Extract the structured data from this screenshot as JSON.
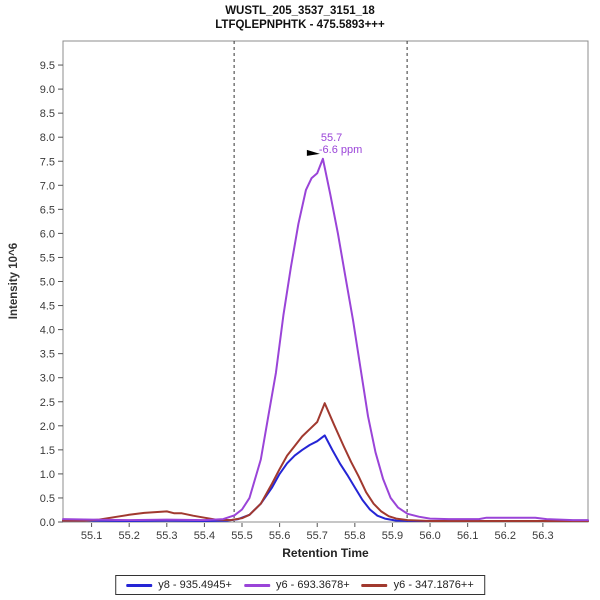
{
  "chart_data": {
    "type": "line",
    "title_line1": "WUSTL_205_3537_3151_18",
    "title_line2": "LTFQLEPNPHTK - 475.5893+++",
    "xlabel": "Retention Time",
    "ylabel": "Intensity 10^6",
    "xlim": [
      55.024,
      56.42
    ],
    "ylim": [
      0,
      10
    ],
    "grid": false,
    "legend_position": "bottom-center",
    "x_tick_labels": [
      "55.1",
      "55.2",
      "55.3",
      "55.4",
      "55.5",
      "55.6",
      "55.7",
      "55.8",
      "55.9",
      "56.0",
      "56.1",
      "56.2",
      "56.3"
    ],
    "y_tick_labels": [
      "0.0",
      "0.5",
      "1.0",
      "1.5",
      "2.0",
      "2.5",
      "3.0",
      "3.5",
      "4.0",
      "4.5",
      "5.0",
      "5.5",
      "6.0",
      "6.5",
      "7.0",
      "7.5",
      "8.0",
      "8.5",
      "9.0",
      "9.5"
    ],
    "peak_boundaries": [
      55.479,
      55.939
    ],
    "annotation": {
      "rt_label": "55.7",
      "ppm_label": "-6.6 ppm",
      "x": 55.715,
      "y": 7.55,
      "color": "#9a44d8"
    },
    "draw_order": [
      0,
      2,
      1
    ],
    "series": [
      {
        "id": "y8-935",
        "label": "y8 - 935.4945+",
        "color": "#2525d5",
        "points": [
          [
            55.024,
            0.03
          ],
          [
            55.1,
            0.03
          ],
          [
            55.2,
            0.02
          ],
          [
            55.3,
            0.03
          ],
          [
            55.4,
            0.02
          ],
          [
            55.46,
            0.03
          ],
          [
            55.49,
            0.06
          ],
          [
            55.52,
            0.15
          ],
          [
            55.55,
            0.38
          ],
          [
            55.58,
            0.72
          ],
          [
            55.6,
            1.0
          ],
          [
            55.62,
            1.22
          ],
          [
            55.64,
            1.38
          ],
          [
            55.66,
            1.5
          ],
          [
            55.68,
            1.6
          ],
          [
            55.7,
            1.68
          ],
          [
            55.72,
            1.8
          ],
          [
            55.74,
            1.5
          ],
          [
            55.76,
            1.22
          ],
          [
            55.78,
            0.98
          ],
          [
            55.8,
            0.72
          ],
          [
            55.82,
            0.46
          ],
          [
            55.84,
            0.26
          ],
          [
            55.86,
            0.13
          ],
          [
            55.88,
            0.07
          ],
          [
            55.91,
            0.03
          ],
          [
            55.95,
            0.02
          ],
          [
            56.05,
            0.02
          ],
          [
            56.2,
            0.02
          ],
          [
            56.42,
            0.02
          ]
        ]
      },
      {
        "id": "y6-693",
        "label": "y6 - 693.3678+",
        "color": "#9a44d8",
        "points": [
          [
            55.024,
            0.06
          ],
          [
            55.1,
            0.05
          ],
          [
            55.2,
            0.04
          ],
          [
            55.3,
            0.05
          ],
          [
            55.4,
            0.04
          ],
          [
            55.45,
            0.06
          ],
          [
            55.48,
            0.14
          ],
          [
            55.5,
            0.26
          ],
          [
            55.52,
            0.5
          ],
          [
            55.55,
            1.3
          ],
          [
            55.57,
            2.2
          ],
          [
            55.59,
            3.1
          ],
          [
            55.61,
            4.3
          ],
          [
            55.63,
            5.3
          ],
          [
            55.65,
            6.2
          ],
          [
            55.67,
            6.9
          ],
          [
            55.685,
            7.15
          ],
          [
            55.7,
            7.25
          ],
          [
            55.715,
            7.55
          ],
          [
            55.735,
            6.8
          ],
          [
            55.755,
            6.0
          ],
          [
            55.775,
            5.1
          ],
          [
            55.795,
            4.2
          ],
          [
            55.815,
            3.2
          ],
          [
            55.835,
            2.2
          ],
          [
            55.855,
            1.45
          ],
          [
            55.875,
            0.9
          ],
          [
            55.895,
            0.5
          ],
          [
            55.915,
            0.3
          ],
          [
            55.94,
            0.17
          ],
          [
            55.97,
            0.11
          ],
          [
            56.0,
            0.07
          ],
          [
            56.05,
            0.06
          ],
          [
            56.13,
            0.06
          ],
          [
            56.15,
            0.09
          ],
          [
            56.28,
            0.09
          ],
          [
            56.31,
            0.06
          ],
          [
            56.38,
            0.04
          ],
          [
            56.42,
            0.04
          ]
        ]
      },
      {
        "id": "y6-347",
        "label": "y6 - 347.1876++",
        "color": "#a1392f",
        "points": [
          [
            55.024,
            0.03
          ],
          [
            55.08,
            0.03
          ],
          [
            55.12,
            0.05
          ],
          [
            55.16,
            0.1
          ],
          [
            55.2,
            0.15
          ],
          [
            55.24,
            0.19
          ],
          [
            55.28,
            0.21
          ],
          [
            55.3,
            0.22
          ],
          [
            55.32,
            0.18
          ],
          [
            55.34,
            0.18
          ],
          [
            55.37,
            0.13
          ],
          [
            55.4,
            0.09
          ],
          [
            55.43,
            0.05
          ],
          [
            55.47,
            0.04
          ],
          [
            55.5,
            0.08
          ],
          [
            55.52,
            0.15
          ],
          [
            55.55,
            0.38
          ],
          [
            55.58,
            0.8
          ],
          [
            55.6,
            1.1
          ],
          [
            55.62,
            1.38
          ],
          [
            55.64,
            1.58
          ],
          [
            55.66,
            1.78
          ],
          [
            55.68,
            1.93
          ],
          [
            55.7,
            2.08
          ],
          [
            55.72,
            2.47
          ],
          [
            55.745,
            2.02
          ],
          [
            55.77,
            1.58
          ],
          [
            55.79,
            1.25
          ],
          [
            55.81,
            0.95
          ],
          [
            55.83,
            0.62
          ],
          [
            55.85,
            0.38
          ],
          [
            55.87,
            0.22
          ],
          [
            55.89,
            0.12
          ],
          [
            55.91,
            0.07
          ],
          [
            55.94,
            0.04
          ],
          [
            56.0,
            0.02
          ],
          [
            56.2,
            0.02
          ],
          [
            56.42,
            0.02
          ]
        ]
      }
    ],
    "colors": {
      "frame": "#8c8c8c",
      "tick": "#555555",
      "tick_label": "#3a3a3a",
      "boundary_line": "#333333",
      "arrow": "#000000"
    }
  }
}
